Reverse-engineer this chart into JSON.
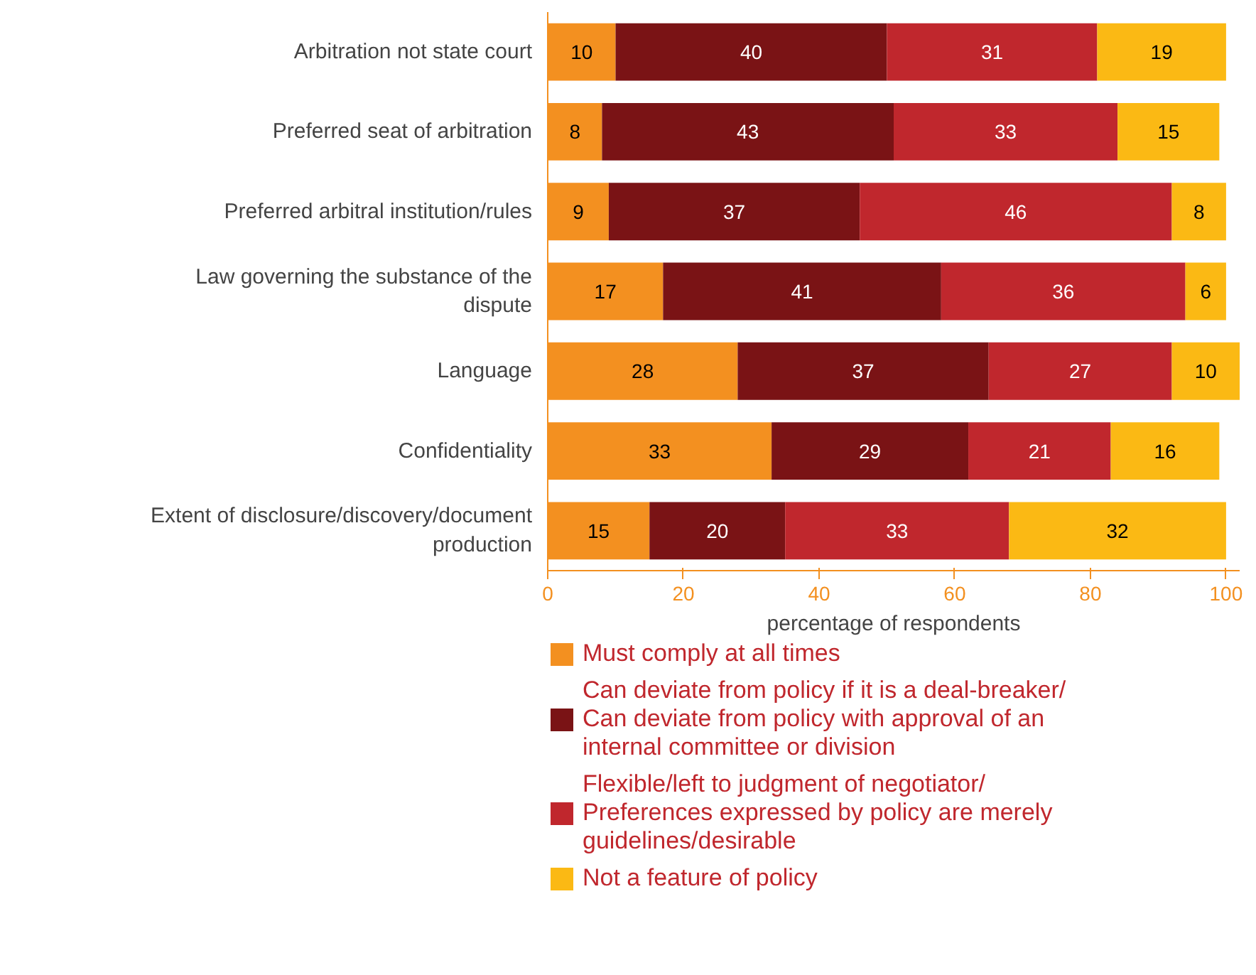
{
  "chart_data": {
    "type": "bar",
    "orientation": "horizontal",
    "stacked": true,
    "data_labels": true,
    "grid": false,
    "legend": "bottom",
    "categories": [
      "Arbitration not state court",
      "Preferred seat of arbitration",
      "Preferred arbitral institution/rules",
      "Law governing the substance of the dispute",
      "Language",
      "Confidentiality",
      "Extent of disclosure/discovery/document production"
    ],
    "xlim": [
      0,
      102
    ],
    "xticks": [
      0,
      20,
      40,
      60,
      80,
      100
    ],
    "xlabel": "percentage of respondents",
    "series": [
      {
        "name": "Must comply at all times",
        "color": "#f39020",
        "values": [
          10,
          8,
          9,
          17,
          28,
          33,
          15
        ]
      },
      {
        "name": "Can deviate from policy if it is a deal-breaker/\nCan deviate from policy with approval of an\ninternal committee or division",
        "color": "#7a1315",
        "values": [
          40,
          43,
          37,
          41,
          37,
          29,
          20
        ]
      },
      {
        "name": "Flexible/left to judgment of negotiator/\nPreferences expressed by policy are merely\nguidelines/desirable",
        "color": "#c0272d",
        "values": [
          31,
          33,
          46,
          36,
          27,
          21,
          33
        ]
      },
      {
        "name": "Not a feature of policy",
        "color": "#fbb914",
        "values": [
          19,
          15,
          8,
          6,
          10,
          16,
          32
        ]
      }
    ]
  }
}
